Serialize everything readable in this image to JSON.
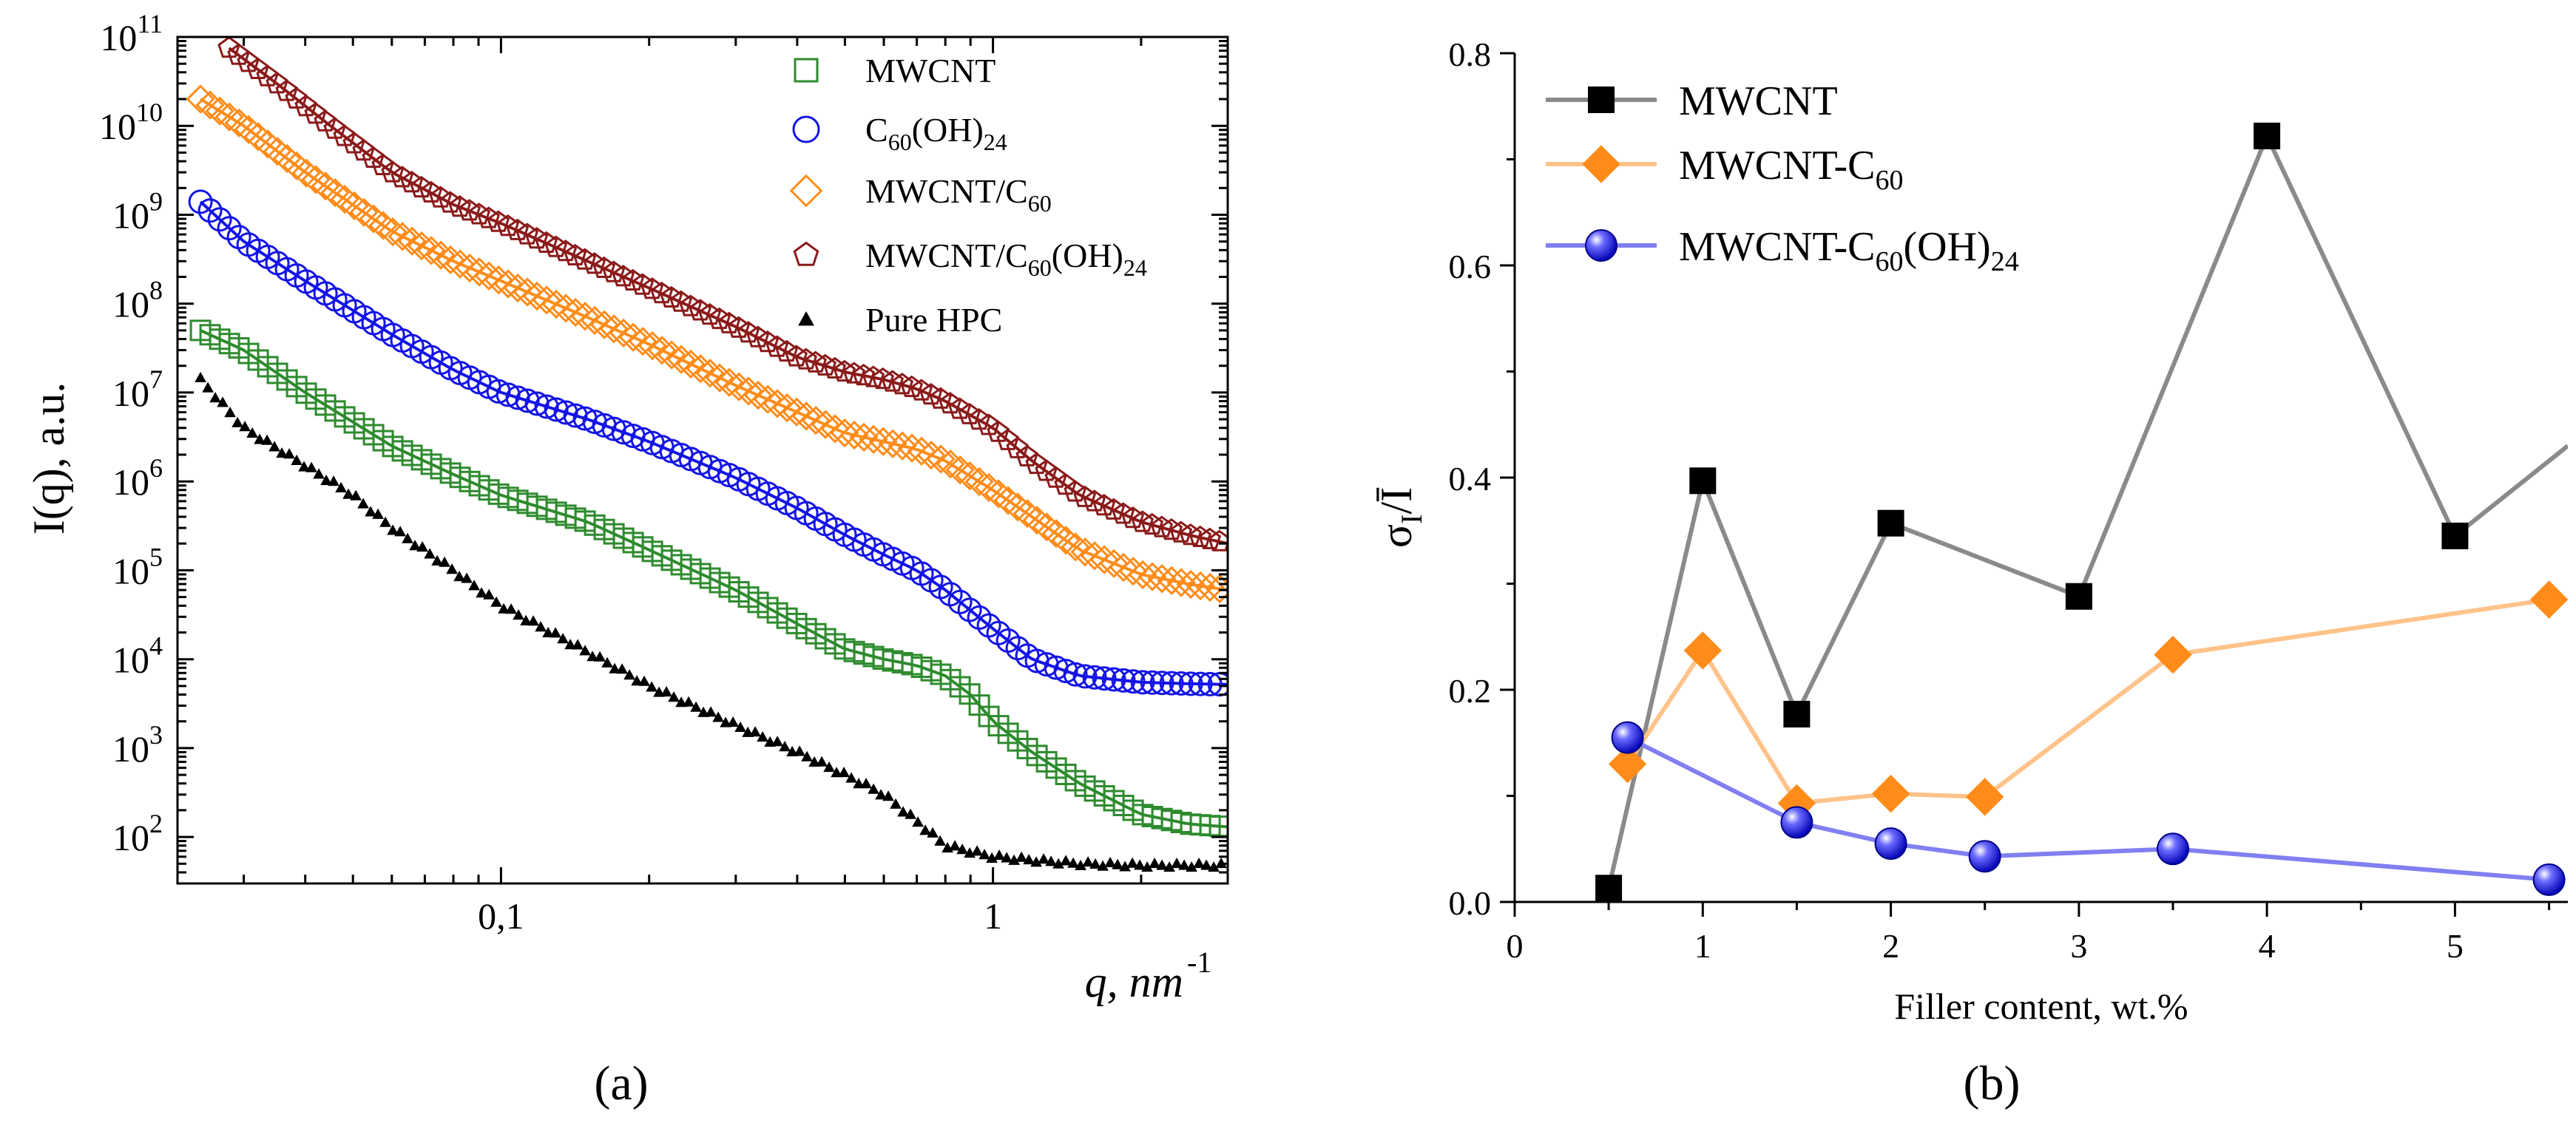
{
  "chart_data": [
    {
      "type": "scatter",
      "panel_label": "(a)",
      "xlabel": "q, nm",
      "xlabel_sup": "-1",
      "ylabel": "I(q), a.u.",
      "xscale": "log",
      "yscale": "log",
      "xlim": [
        0.022,
        3
      ],
      "ylim": [
        30,
        100000000000
      ],
      "x_tick_labels": [
        "0,1",
        "1"
      ],
      "y_tick_labels": [
        "10",
        "10",
        "10",
        "10",
        "10",
        "10",
        "10",
        "10",
        "10",
        "10"
      ],
      "y_tick_exponents": [
        "2",
        "3",
        "4",
        "5",
        "6",
        "7",
        "8",
        "9",
        "10",
        "11"
      ],
      "legend_position": "top-right",
      "series": [
        {
          "name": "MWCNT",
          "legend_label": "MWCNT",
          "legend_sub": "",
          "legend_tail": "",
          "marker": "square",
          "color": "#2e8b2e",
          "fit_line": true,
          "x": [
            0.0245,
            0.03,
            0.04,
            0.06,
            0.08,
            0.1,
            0.15,
            0.2,
            0.3,
            0.4,
            0.5,
            0.6,
            0.7,
            0.8,
            0.9,
            1.0,
            1.2,
            1.5,
            2.0,
            2.5,
            3.0
          ],
          "y": [
            50000000,
            30000000,
            10000000,
            2500000,
            1200000,
            700000,
            350000,
            170000,
            60000,
            25000,
            13000,
            10000,
            8500,
            6500,
            4000,
            2000,
            900,
            400,
            180,
            140,
            130
          ]
        },
        {
          "name": "C60(OH)24",
          "legend_label": "C",
          "legend_sub": "60",
          "legend_tail": "(OH)24",
          "marker": "circle",
          "color": "#1414e6",
          "fit_line": true,
          "x": [
            0.0245,
            0.03,
            0.04,
            0.06,
            0.08,
            0.1,
            0.15,
            0.2,
            0.3,
            0.4,
            0.5,
            0.6,
            0.7,
            0.8,
            1.0,
            1.2,
            1.5,
            2.0,
            2.5,
            3.0
          ],
          "y": [
            1400000000,
            500000000,
            180000000,
            45000000,
            18000000,
            10000000,
            5000000,
            2800000,
            1100000,
            500000,
            250000,
            150000,
            100000,
            60000,
            22000,
            10000,
            6500,
            5500,
            5300,
            5200
          ]
        },
        {
          "name": "MWCNT/C60",
          "legend_label": "MWCNT/C",
          "legend_sub": "60",
          "legend_tail": "",
          "marker": "diamond",
          "color": "#ff8c1a",
          "fit_line": true,
          "x": [
            0.0245,
            0.03,
            0.04,
            0.06,
            0.08,
            0.1,
            0.15,
            0.2,
            0.3,
            0.4,
            0.5,
            0.6,
            0.7,
            0.8,
            1.0,
            1.2,
            1.5,
            2.0,
            2.5,
            3.0
          ],
          "y": [
            20000000000,
            10000000000,
            3000000000,
            650000000,
            300000000,
            180000000,
            70000000,
            35000000,
            12000000,
            6000000,
            3500000,
            2800000,
            2300000,
            1700000,
            800000,
            400000,
            170000,
            90000,
            70000,
            60000
          ]
        },
        {
          "name": "MWCNT/C60(OH)24",
          "legend_label": "MWCNT/C",
          "legend_sub": "60",
          "legend_tail": "(OH)24",
          "marker": "pentagon",
          "color": "#8b1a1a",
          "fit_line": true,
          "x": [
            0.028,
            0.035,
            0.045,
            0.06,
            0.08,
            0.1,
            0.15,
            0.2,
            0.3,
            0.4,
            0.5,
            0.6,
            0.7,
            0.8,
            1.0,
            1.2,
            1.5,
            2.0,
            2.5,
            3.0
          ],
          "y": [
            75000000000,
            30000000000,
            10000000000,
            3000000000,
            1300000000,
            800000000,
            300000000,
            150000000,
            55000000,
            25000000,
            17000000,
            14000000,
            11000000,
            8000000,
            4000000,
            1700000,
            700000,
            350000,
            250000,
            200000
          ]
        },
        {
          "name": "Pure HPC",
          "legend_label": "Pure HPC",
          "legend_sub": "",
          "legend_tail": "",
          "marker": "triangle",
          "color": "#000000",
          "fit_line": false,
          "x": [
            0.0245,
            0.03,
            0.04,
            0.05,
            0.06,
            0.08,
            0.1,
            0.15,
            0.2,
            0.3,
            0.4,
            0.5,
            0.6,
            0.7,
            0.8,
            1.0,
            1.2,
            1.5,
            2.0,
            2.5,
            3.0
          ],
          "y": [
            14000000,
            4000000,
            1500000,
            700000,
            300000,
            100000,
            40000,
            12000,
            5000,
            1800,
            900,
            500,
            300,
            150,
            80,
            60,
            55,
            50,
            48,
            48,
            48
          ]
        }
      ]
    },
    {
      "type": "line",
      "panel_label": "(b)",
      "xlabel": "Filler content, wt.%",
      "ylabel_main": "σ",
      "ylabel_sub": "I",
      "ylabel_tail": "/Ī",
      "xlim": [
        0,
        5.6
      ],
      "ylim": [
        0,
        0.8
      ],
      "x_ticks": [
        0,
        1,
        2,
        3,
        4,
        5
      ],
      "x_tick_labels": [
        "0",
        "1",
        "2",
        "3",
        "4",
        "5"
      ],
      "y_ticks": [
        0,
        0.2,
        0.4,
        0.6,
        0.8
      ],
      "y_tick_labels": [
        "0.0",
        "0.2",
        "0.4",
        "0.6",
        "0.8"
      ],
      "legend_position": "top-left",
      "series": [
        {
          "name": "MWCNT",
          "legend_label": "MWCNT",
          "legend_sub": "",
          "legend_tail": "",
          "marker": "square",
          "color": "#000000",
          "line_color": "#8a8a8a",
          "x": [
            0.5,
            1,
            1.5,
            2,
            3,
            4,
            5,
            5.6
          ],
          "y": [
            0.013,
            0.397,
            0.177,
            0.357,
            0.288,
            0.722,
            0.345,
            0.43
          ],
          "marked": [
            true,
            true,
            true,
            true,
            true,
            true,
            true,
            false
          ]
        },
        {
          "name": "MWCNT-C60",
          "legend_label": "MWCNT-C",
          "legend_sub": "60",
          "legend_tail": "",
          "marker": "diamond",
          "color": "#ff8c1a",
          "line_color": "#ffc38a",
          "x": [
            0.6,
            1,
            1.5,
            2,
            2.5,
            3.5,
            5.5
          ],
          "y": [
            0.13,
            0.237,
            0.093,
            0.102,
            0.099,
            0.233,
            0.285
          ],
          "marked": [
            true,
            true,
            true,
            true,
            true,
            true,
            true
          ]
        },
        {
          "name": "MWCNT-C60(OH)24",
          "legend_label": "MWCNT-C",
          "legend_sub": "60",
          "legend_tail": "(OH)24",
          "marker": "ball",
          "color": "#2222ee",
          "line_color": "#8080f2",
          "x": [
            0.6,
            1.5,
            2,
            2.5,
            3.5,
            5.5
          ],
          "y": [
            0.155,
            0.075,
            0.055,
            0.043,
            0.05,
            0.021
          ],
          "marked": [
            true,
            true,
            true,
            true,
            true,
            true
          ]
        }
      ]
    }
  ]
}
